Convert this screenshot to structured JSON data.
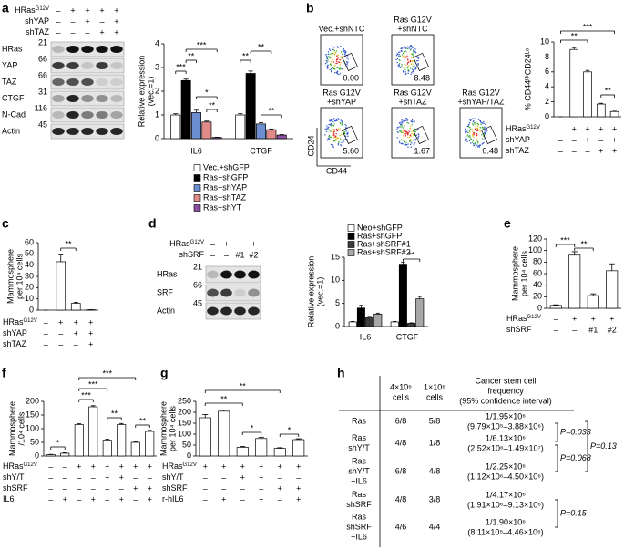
{
  "panel_labels": [
    "a",
    "b",
    "c",
    "d",
    "e",
    "f",
    "g",
    "h"
  ],
  "blots": [
    {
      "header": [
        {
          "label": "HRas",
          "sup": "G12V",
          "marks": [
            "–",
            "+",
            "+",
            "+",
            "+"
          ]
        },
        {
          "label": "shYAP",
          "marks": [
            "–",
            "–",
            "+",
            "–",
            "+"
          ]
        },
        {
          "label": "shTAZ",
          "marks": [
            "–",
            "–",
            "–",
            "+",
            "+"
          ]
        }
      ],
      "rows": [
        {
          "name": "HRas",
          "marker": "21"
        },
        {
          "name": "YAP",
          "marker": "66"
        },
        {
          "name": "TAZ",
          "marker": "66"
        },
        {
          "name": "CTGF",
          "marker": "31"
        },
        {
          "name": "N-Cad",
          "marker": "116"
        },
        {
          "name": "Actin",
          "marker": "45"
        }
      ]
    },
    {
      "header": [
        {
          "label": "HRas",
          "sup": "G12V",
          "marks": [
            "–",
            "+",
            "+",
            "+"
          ]
        },
        {
          "label": "shSRF",
          "marks": [
            "–",
            "–",
            "#1",
            "#2"
          ]
        }
      ],
      "rows": [
        {
          "name": "HRas",
          "marker": "21"
        },
        {
          "name": "SRF",
          "marker": "66"
        },
        {
          "name": "Actin",
          "marker": "45"
        }
      ]
    }
  ],
  "flow": {
    "plots": [
      {
        "title": [
          "Vec.+shNTC"
        ],
        "value": "0.00"
      },
      {
        "title": [
          "Ras G12V",
          "+shNTC"
        ],
        "value": "8.48"
      },
      {
        "title": [
          "Ras G12V",
          "+shYAP"
        ],
        "value": "5.60"
      },
      {
        "title": [
          "Ras G12V",
          "+shTAZ"
        ],
        "value": "1.67"
      },
      {
        "title": [
          "Ras G12V",
          "+shYAP/TAZ"
        ],
        "value": "0.48"
      }
    ],
    "ylabel": "CD24",
    "xlabel": "CD44"
  },
  "chart_data": [
    {
      "type": "bar",
      "ylabel": [
        "Relative expression",
        "(vec.=1)"
      ],
      "ylim": [
        0,
        4
      ],
      "yticks": [
        0,
        1,
        2,
        3,
        4
      ],
      "categories": [
        "IL6",
        "CTGF"
      ],
      "series": [
        {
          "name": "Vec.+shGFP",
          "color": "#ffffff",
          "values": [
            1,
            1
          ],
          "errors": [
            0.05,
            0.05
          ]
        },
        {
          "name": "Ras+shGFP",
          "color": "#000000",
          "values": [
            2.45,
            2.75
          ],
          "errors": [
            0.06,
            0.1
          ]
        },
        {
          "name": "Ras+shYAP",
          "color": "#6d8fd0",
          "values": [
            1.1,
            0.62
          ],
          "errors": [
            0.1,
            0.05
          ]
        },
        {
          "name": "Ras+shTAZ",
          "color": "#e08a8a",
          "values": [
            0.7,
            0.38
          ],
          "errors": [
            0.04,
            0.03
          ]
        },
        {
          "name": "Ras+shYT",
          "color": "#8b4f9f",
          "values": [
            0.05,
            0.15
          ],
          "errors": [
            0.01,
            0.02
          ]
        }
      ],
      "annotations": [
        "***",
        "**",
        "***",
        "*",
        "**",
        "**",
        "**",
        "**"
      ]
    },
    {
      "type": "bar",
      "ylabel": [
        "% CD44ᴴⁱCD24ᴸᵒ"
      ],
      "ylim": [
        0,
        10
      ],
      "yticks": [
        0,
        2,
        4,
        6,
        8,
        10
      ],
      "values": [
        0,
        9,
        6,
        1.7,
        0.7
      ],
      "errors": [
        0,
        0.25,
        0.2,
        0.1,
        0.05
      ],
      "color": "#ffffff",
      "conditions": [
        {
          "label": "HRas",
          "sup": "G12V",
          "marks": [
            "–",
            "+",
            "+",
            "+",
            "+"
          ]
        },
        {
          "label": "shYAP",
          "marks": [
            "–",
            "–",
            "+",
            "–",
            "+"
          ]
        },
        {
          "label": "shTAZ",
          "marks": [
            "–",
            "–",
            "–",
            "+",
            "+"
          ]
        }
      ],
      "annotations": [
        "***",
        "**",
        "**"
      ]
    },
    {
      "type": "bar",
      "ylabel": [
        "Mammosphere",
        "per 10⁴ cells"
      ],
      "ylim": [
        0,
        60
      ],
      "yticks": [
        0,
        10,
        20,
        30,
        40,
        50,
        60
      ],
      "values": [
        0,
        43,
        6,
        0.3
      ],
      "errors": [
        0,
        6,
        1,
        0.1
      ],
      "color": "#ffffff",
      "conditions": [
        {
          "label": "HRas",
          "sup": "G12V",
          "marks": [
            "–",
            "+",
            "+",
            "+"
          ]
        },
        {
          "label": "shYAP",
          "marks": [
            "–",
            "–",
            "+",
            "+"
          ]
        },
        {
          "label": "shTAZ",
          "marks": [
            "–",
            "–",
            "–",
            "+"
          ]
        }
      ],
      "annotations": [
        "**"
      ]
    },
    {
      "type": "bar",
      "ylabel": [
        "Relative expression",
        "(vec.=1)"
      ],
      "ylim": [
        0,
        15
      ],
      "yticks": [
        0,
        5,
        10,
        15
      ],
      "categories": [
        "IL6",
        "CTGF"
      ],
      "series": [
        {
          "name": "Neo+shGFP",
          "color": "#ffffff",
          "values": [
            1,
            1
          ],
          "errors": [
            0.1,
            0.1
          ]
        },
        {
          "name": "Ras+shGFP",
          "color": "#000000",
          "values": [
            4,
            13.5
          ],
          "errors": [
            0.6,
            0.4
          ]
        },
        {
          "name": "Ras+shSRF#1",
          "color": "#3c3c3c",
          "values": [
            2,
            0.7
          ],
          "errors": [
            0.2,
            0.1
          ]
        },
        {
          "name": "Ras+shSRF#2",
          "color": "#a8a8a8",
          "values": [
            2.7,
            6
          ],
          "errors": [
            0.2,
            0.5
          ]
        }
      ],
      "annotations": [
        "**"
      ]
    },
    {
      "type": "bar",
      "ylabel": [
        "Mammosphere",
        "per 10⁴ cells"
      ],
      "ylim": [
        0,
        120
      ],
      "yticks": [
        0,
        20,
        40,
        60,
        80,
        100,
        120
      ],
      "values": [
        5,
        92,
        22,
        65
      ],
      "errors": [
        1,
        6,
        3,
        12
      ],
      "color": "#ffffff",
      "conditions": [
        {
          "label": "HRas",
          "sup": "G12V",
          "marks": [
            "–",
            "+",
            "+",
            "+"
          ]
        },
        {
          "label": "shSRF",
          "marks": [
            "–",
            "–",
            "#1",
            "#2"
          ]
        }
      ],
      "annotations": [
        "***",
        "**"
      ]
    },
    {
      "type": "bar",
      "ylabel": [
        "Mammosphere",
        "/10⁴ cells"
      ],
      "ylim": [
        0,
        200
      ],
      "yticks": [
        0,
        50,
        100,
        150,
        200
      ],
      "values": [
        5,
        10,
        115,
        180,
        58,
        115,
        50,
        90
      ],
      "errors": [
        1,
        2,
        3,
        4,
        4,
        4,
        3,
        4
      ],
      "color": "#ffffff",
      "conditions": [
        {
          "label": "HRas",
          "sup": "G12V",
          "marks": [
            "–",
            "–",
            "+",
            "+",
            "+",
            "+",
            "+",
            "+"
          ]
        },
        {
          "label": "shY/T",
          "marks": [
            "–",
            "–",
            "–",
            "–",
            "+",
            "+",
            "–",
            "–"
          ]
        },
        {
          "label": "shSRF",
          "marks": [
            "–",
            "–",
            "–",
            "–",
            "–",
            "–",
            "+",
            "+"
          ]
        },
        {
          "label": "IL6",
          "marks": [
            "–",
            "+",
            "–",
            "+",
            "–",
            "+",
            "–",
            "+"
          ]
        }
      ],
      "annotations": [
        "*",
        "***",
        "***",
        "***",
        "**",
        "**"
      ]
    },
    {
      "type": "bar",
      "ylabel": [
        "Mammosphere",
        "per 10⁴ cells"
      ],
      "ylim": [
        0,
        250
      ],
      "yticks": [
        0,
        50,
        100,
        150,
        200,
        250
      ],
      "values": [
        175,
        205,
        40,
        80,
        35,
        75
      ],
      "errors": [
        15,
        5,
        4,
        6,
        3,
        4
      ],
      "color": "#ffffff",
      "conditions": [
        {
          "label": "HRas",
          "sup": "G12V",
          "marks": [
            "+",
            "+",
            "+",
            "+",
            "+",
            "+"
          ]
        },
        {
          "label": "shY/T",
          "marks": [
            "–",
            "–",
            "+",
            "+",
            "–",
            "–"
          ]
        },
        {
          "label": "shSRF",
          "marks": [
            "–",
            "–",
            "–",
            "–",
            "+",
            "+"
          ]
        },
        {
          "label": "r-hIL6",
          "marks": [
            "–",
            "+",
            "–",
            "+",
            "–",
            "+"
          ]
        }
      ],
      "annotations": [
        "**",
        "**",
        "*",
        "*"
      ]
    }
  ],
  "table": {
    "headers": [
      [
        "4×10⁶",
        "cells"
      ],
      [
        "1×10⁶",
        "cells"
      ],
      [
        "Cancer stem cell",
        "frequency",
        "(95% confidence interval)"
      ]
    ],
    "rows": [
      {
        "name": [
          "Ras"
        ],
        "cells": [
          "6/8",
          "5/8"
        ],
        "freq": [
          "1/1.95×10⁶",
          "(9.79×10⁵–3.88×10⁶)"
        ]
      },
      {
        "name": [
          "Ras",
          "shY/T"
        ],
        "cells": [
          "4/8",
          "1/8"
        ],
        "freq": [
          "1/6.13×10⁶",
          "(2.52×10⁶–1.49×10⁷)"
        ]
      },
      {
        "name": [
          "Ras",
          "shY/T",
          "+IL6"
        ],
        "cells": [
          "6/8",
          "4/8"
        ],
        "freq": [
          "1/2.25×10⁶",
          "(1.12×10⁶–4.50×10⁶)"
        ]
      },
      {
        "name": [
          "Ras",
          "shSRF"
        ],
        "cells": [
          "4/8",
          "3/8"
        ],
        "freq": [
          "1/4.17×10⁶",
          "(1.91×10⁶–9.13×10⁶)"
        ]
      },
      {
        "name": [
          "Ras",
          "shSRF",
          "+IL6"
        ],
        "cells": [
          "4/6",
          "4/4"
        ],
        "freq": [
          "1/1.90×10⁶",
          "(8.11×10⁵–4.46×10⁶)"
        ]
      }
    ],
    "p_values": [
      "P=0.033",
      "P=0.068",
      "P=0.13",
      "P=0.15"
    ]
  }
}
